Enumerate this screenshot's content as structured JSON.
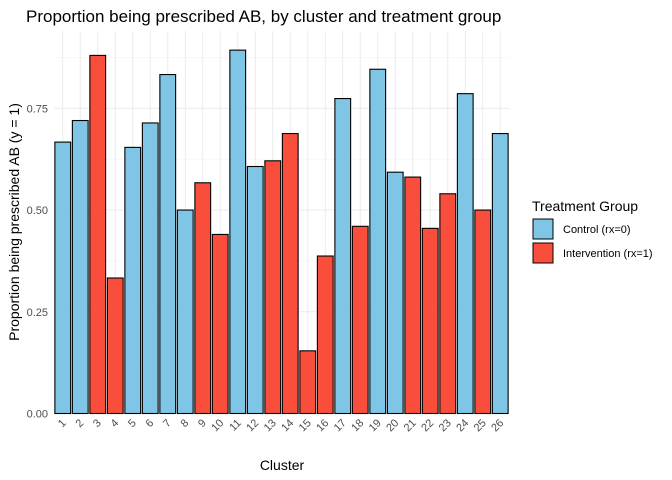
{
  "chart_data": {
    "type": "bar",
    "title": "Proportion being prescribed AB, by cluster and treatment group",
    "xlabel": "Cluster",
    "ylabel": "Proportion being prescribed AB (y = 1)",
    "categories": [
      "1",
      "2",
      "3",
      "4",
      "5",
      "6",
      "7",
      "8",
      "9",
      "10",
      "11",
      "12",
      "13",
      "14",
      "15",
      "16",
      "17",
      "18",
      "19",
      "20",
      "21",
      "22",
      "23",
      "24",
      "25",
      "26"
    ],
    "values": [
      0.667,
      0.72,
      0.88,
      0.333,
      0.654,
      0.714,
      0.833,
      0.5,
      0.567,
      0.44,
      0.893,
      0.607,
      0.621,
      0.688,
      0.154,
      0.387,
      0.774,
      0.46,
      0.846,
      0.593,
      0.581,
      0.455,
      0.54,
      0.786,
      0.5,
      0.688
    ],
    "group": [
      0,
      0,
      1,
      1,
      0,
      0,
      0,
      0,
      1,
      1,
      0,
      0,
      1,
      1,
      1,
      1,
      0,
      1,
      0,
      0,
      1,
      1,
      1,
      0,
      1,
      0
    ],
    "ylim": [
      0,
      0.94
    ],
    "yticks": [
      "0.00",
      "0.25",
      "0.50",
      "0.75"
    ],
    "ytick_values": [
      0,
      0.25,
      0.5,
      0.75
    ],
    "grid": true,
    "legend": {
      "title": "Treatment Group",
      "position": "right",
      "entries": [
        {
          "label": "Control (rx=0)",
          "color": "#7ec5e6"
        },
        {
          "label": "Intervention (rx=1)",
          "color": "#fa4e3c"
        }
      ]
    }
  }
}
